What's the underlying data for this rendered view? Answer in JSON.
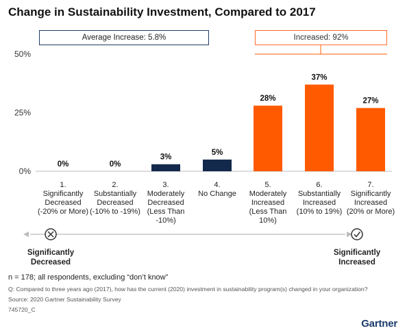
{
  "header": {
    "title": "Change in Sustainability Investment, Compared to 2017"
  },
  "callouts": {
    "average": "Average Increase: 5.8%",
    "increased": "Increased: 92%"
  },
  "colors": {
    "decrease_or_neutral": "#13294b",
    "increase": "#ff5a00",
    "axis": "#bbbbbb",
    "arrow": "#bbbbbb"
  },
  "chart_data": {
    "type": "bar",
    "categories": [
      "1.\nSignificantly\nDecreased\n(-20% or More)",
      "2.\nSubstantially\nDecreased\n(-10% to -19%)",
      "3.\nModerately\nDecreased\n(Less Than\n-10%)",
      "4.\nNo Change",
      "5.\nModerately\nIncreased\n(Less Than\n10%)",
      "6.\nSubstantially\nIncreased\n(10% to 19%)",
      "7.\nSignificantly\nIncreased\n(20% or More)"
    ],
    "values": [
      0,
      0,
      3,
      5,
      28,
      37,
      27
    ],
    "value_labels": [
      "0%",
      "0%",
      "3%",
      "5%",
      "28%",
      "37%",
      "27%"
    ],
    "ytick_labels": [
      "50%",
      "25%",
      "0%"
    ],
    "ylim": [
      0,
      50
    ],
    "grid": false
  },
  "scale_ends": {
    "left": "Significantly\nDecreased",
    "right": "Significantly\nIncreased",
    "left_icon": "x-circle-icon",
    "right_icon": "check-circle-icon"
  },
  "footer": {
    "n_note": "n = 178; all respondents, excluding “don’t know”",
    "question": "Q: Compared to three years ago (2017), how has the current (2020) investment in sustainability program(s) changed in your organization?",
    "source": "Source: 2020 Gartner Sustainability Survey",
    "id": "745720_C"
  },
  "brand": {
    "logo": "Gartner"
  }
}
